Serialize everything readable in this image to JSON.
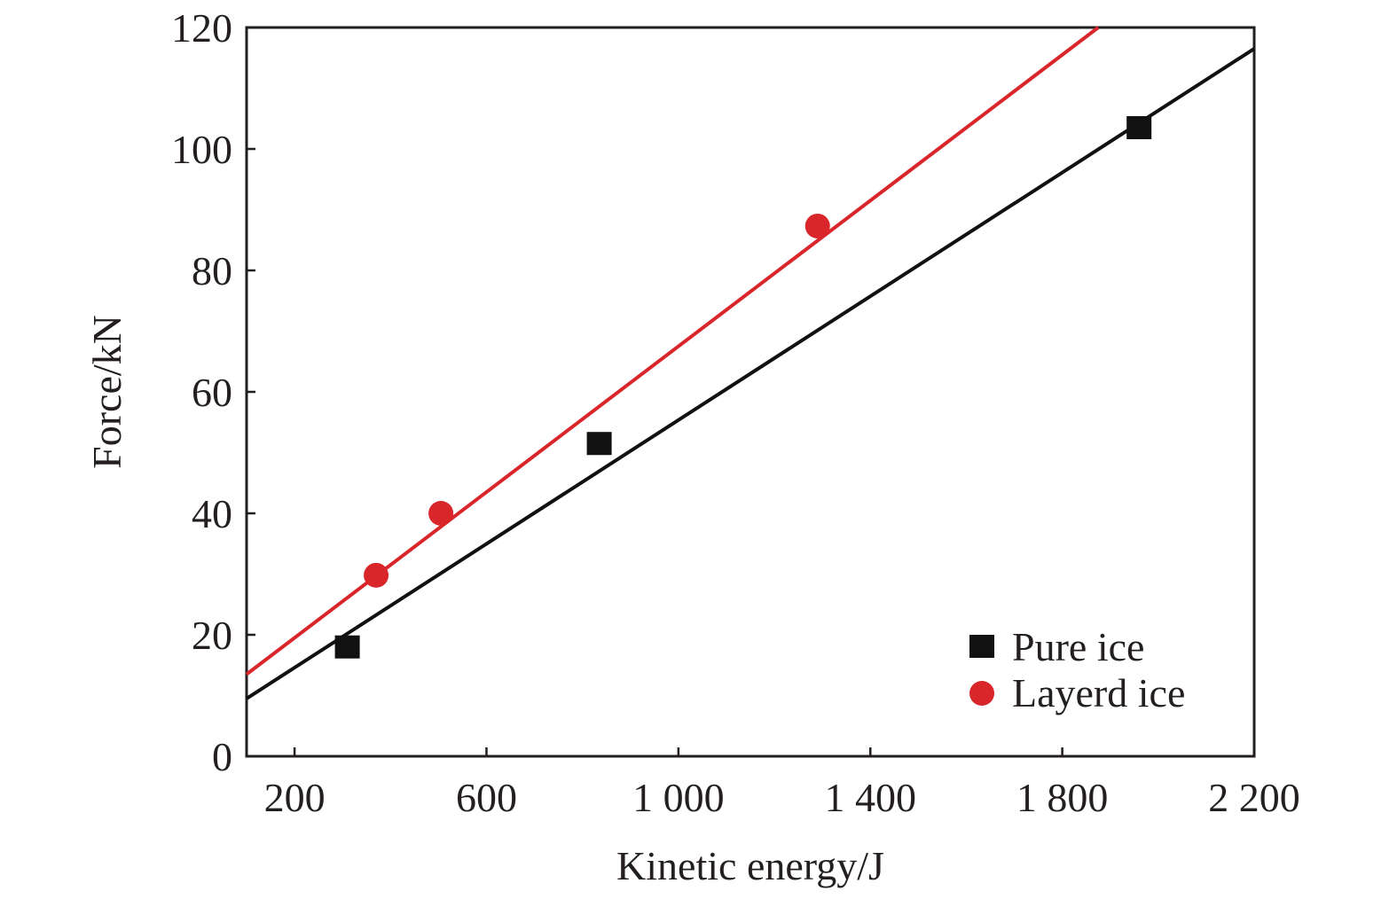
{
  "chart_data": {
    "type": "scatter",
    "title": "",
    "xlabel": "Kinetic energy/J",
    "ylabel": "Force/kN",
    "xlim": [
      100,
      2200
    ],
    "ylim": [
      0,
      120
    ],
    "x_ticks": [
      200,
      600,
      1000,
      1400,
      1800,
      2200
    ],
    "x_tick_labels": [
      "200",
      "600",
      "1 000",
      "1 400",
      "1 800",
      "2 200"
    ],
    "y_ticks": [
      0,
      20,
      40,
      60,
      80,
      100,
      120
    ],
    "y_tick_labels": [
      "0",
      "20",
      "40",
      "60",
      "80",
      "100",
      "120"
    ],
    "grid": false,
    "legend_position": "bottom-right",
    "series": [
      {
        "name": "Pure ice",
        "marker": "square",
        "color": "#111111",
        "points": [
          [
            310,
            18
          ],
          [
            835,
            51.5
          ],
          [
            1960,
            103.5
          ]
        ],
        "fit_line": [
          [
            100,
            9.5
          ],
          [
            2200,
            116.5
          ]
        ]
      },
      {
        "name": "Layerd ice",
        "marker": "circle",
        "color": "#d9262a",
        "points": [
          [
            370,
            29.8
          ],
          [
            505,
            40
          ],
          [
            1290,
            87.3
          ]
        ],
        "fit_line": [
          [
            100,
            13.5
          ],
          [
            1875,
            120
          ]
        ]
      }
    ]
  }
}
